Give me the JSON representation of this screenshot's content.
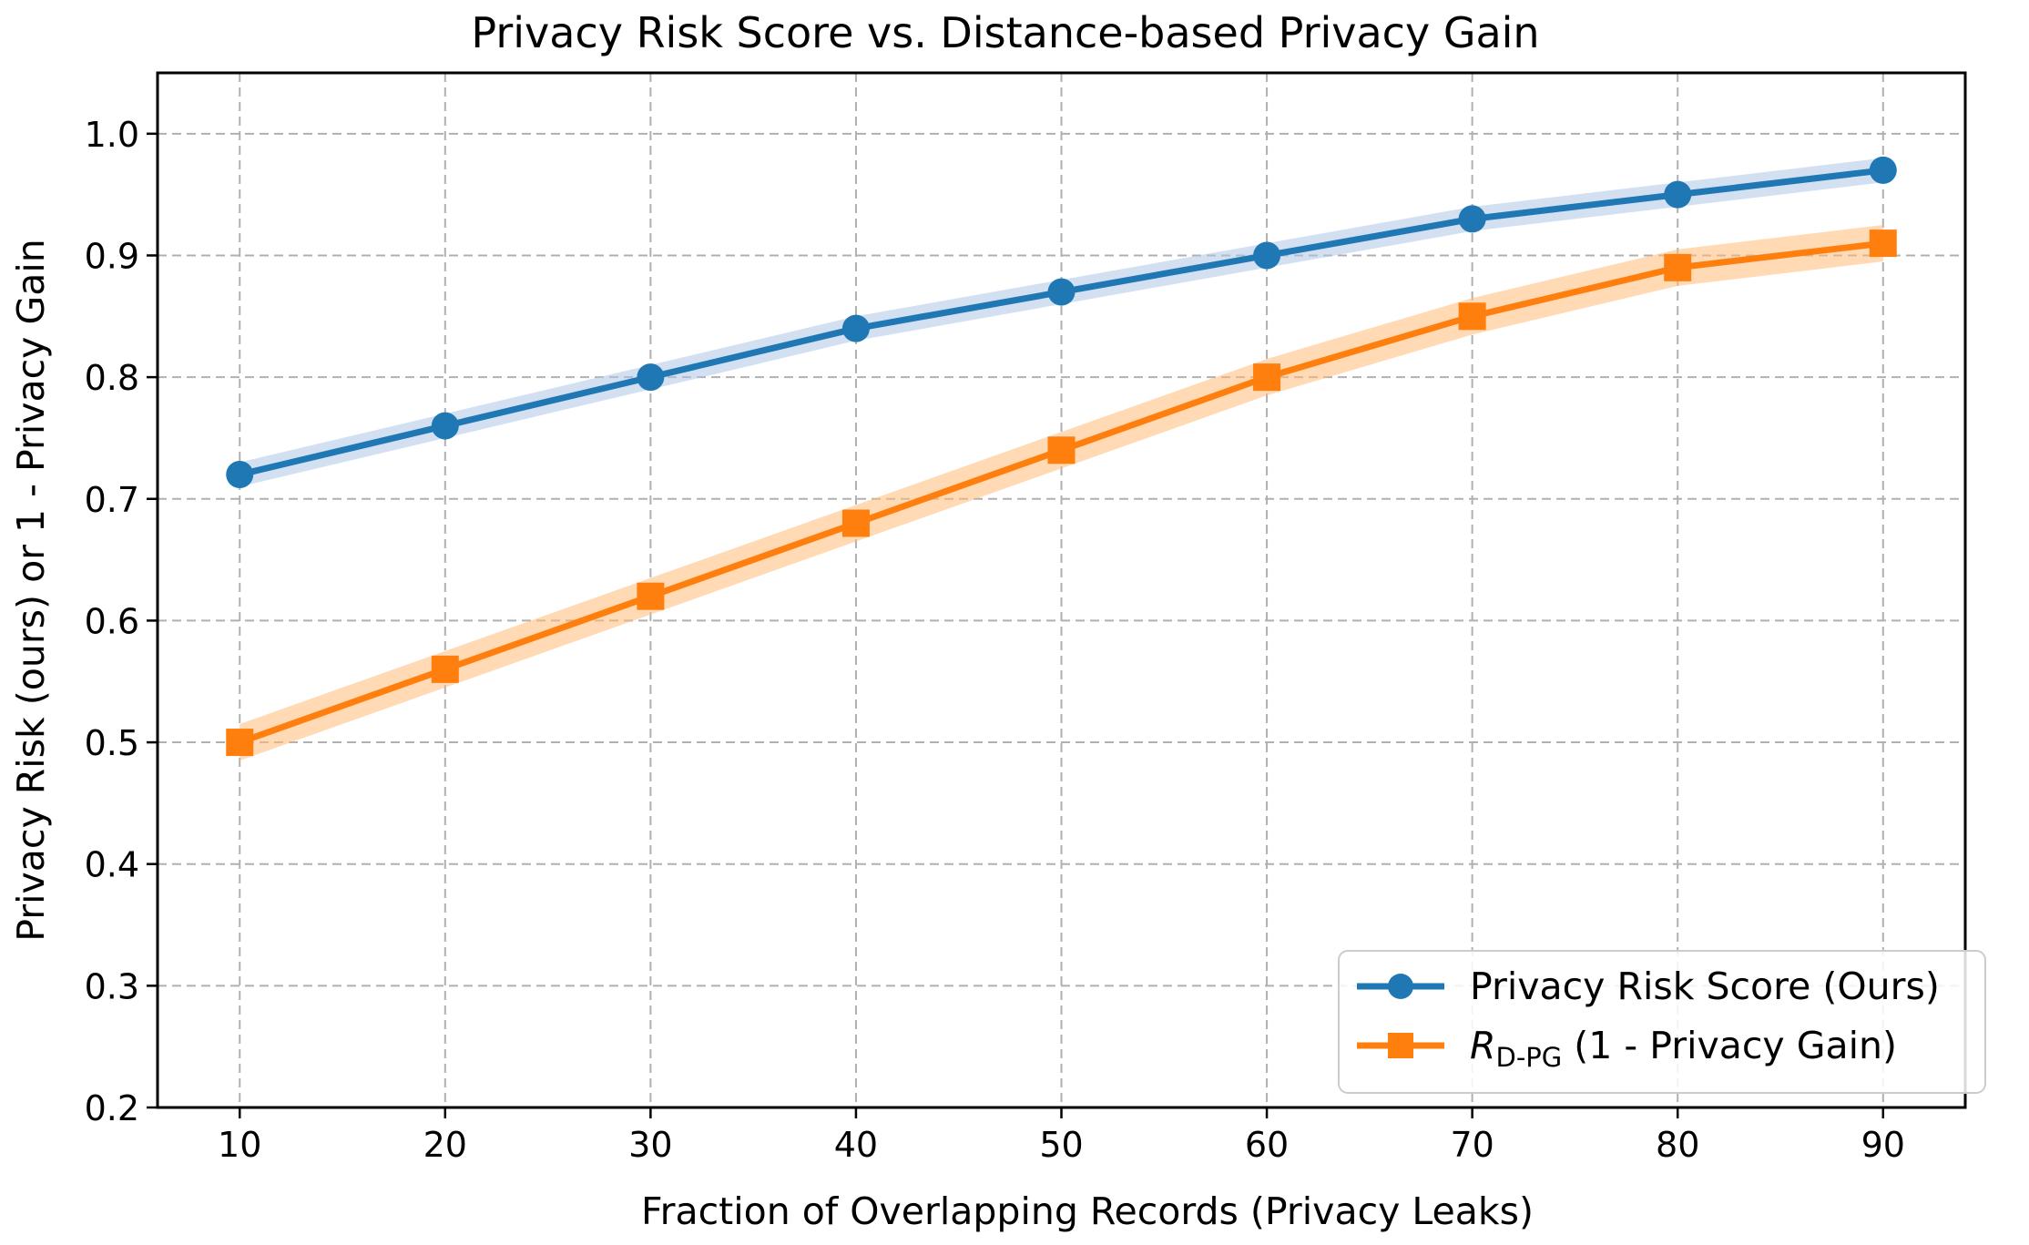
{
  "chart_data": {
    "type": "line",
    "title": "Privacy Risk Score vs. Distance-based Privacy Gain",
    "xlabel": "Fraction of Overlapping Records (Privacy Leaks)",
    "ylabel": "Privacy Risk (ours) or 1 - Privacy Gain",
    "x": [
      10,
      20,
      30,
      40,
      50,
      60,
      70,
      80,
      90
    ],
    "xlim": [
      6,
      94
    ],
    "ylim": [
      0.2,
      1.05
    ],
    "xticks": [
      10,
      20,
      30,
      40,
      50,
      60,
      70,
      80,
      90
    ],
    "yticks": [
      0.2,
      0.3,
      0.4,
      0.5,
      0.6,
      0.7,
      0.8,
      0.9,
      1.0
    ],
    "ytick_labels": [
      "0.2",
      "0.3",
      "0.4",
      "0.5",
      "0.6",
      "0.7",
      "0.8",
      "0.9",
      "1.0"
    ],
    "grid": true,
    "legend_position": "bottom-right",
    "series": [
      {
        "name": "Privacy Risk Score (Ours)",
        "color": "#1f77b4",
        "band_color": "#aec7e8",
        "marker": "circle",
        "values": [
          0.72,
          0.76,
          0.8,
          0.84,
          0.87,
          0.9,
          0.93,
          0.95,
          0.97
        ],
        "band": 0.01
      },
      {
        "name": "R_D-PG (1 - Privacy Gain)",
        "legend_main": "R",
        "legend_sub": "D-PG",
        "legend_rest": " (1 - Privacy Gain)",
        "color": "#ff7f0e",
        "band_color": "#ffbb78",
        "marker": "square",
        "values": [
          0.5,
          0.56,
          0.62,
          0.68,
          0.74,
          0.8,
          0.85,
          0.89,
          0.91
        ],
        "band": 0.015
      }
    ]
  }
}
